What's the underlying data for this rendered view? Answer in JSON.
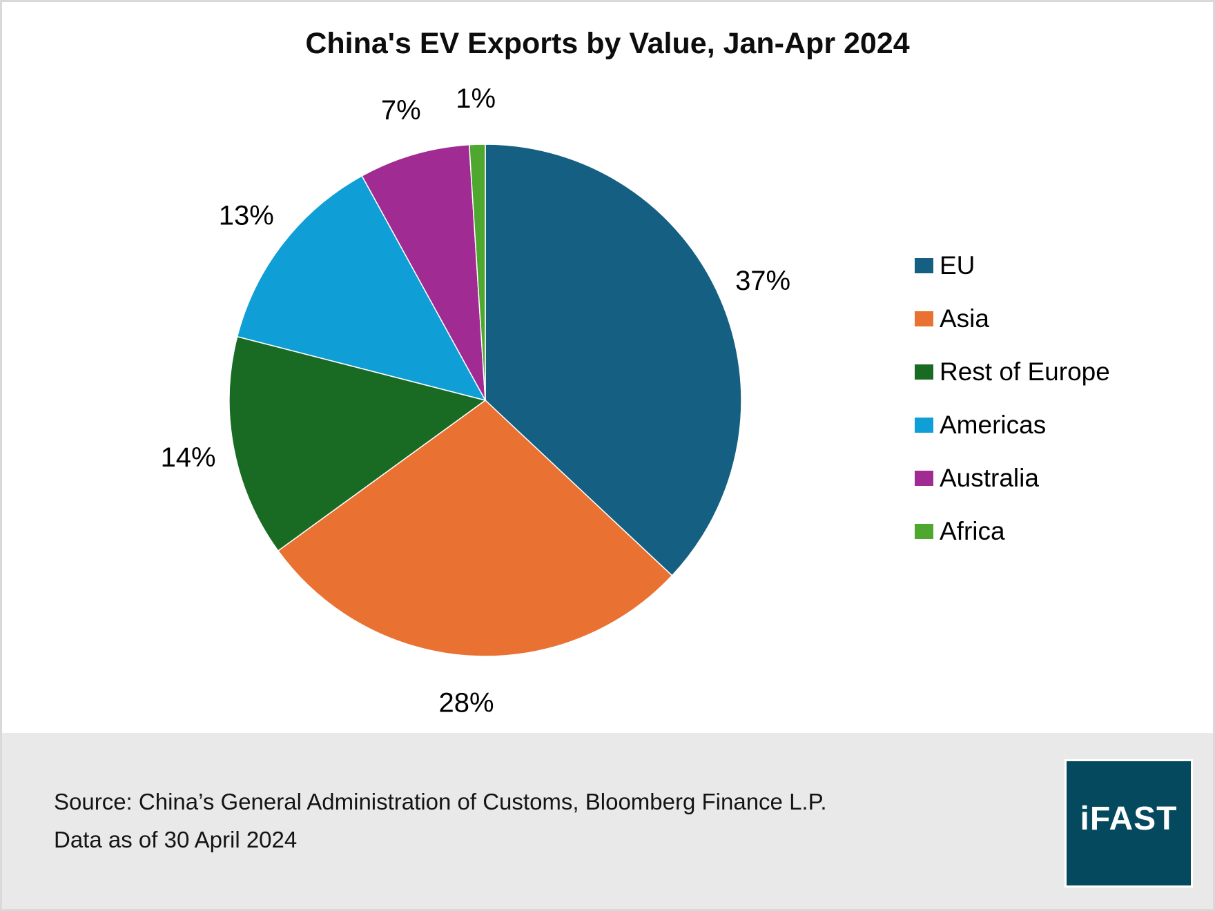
{
  "title": "China's EV Exports by Value, Jan-Apr 2024",
  "chart_data": {
    "type": "pie",
    "title": "China's EV Exports by Value, Jan-Apr 2024",
    "categories": [
      "EU",
      "Asia",
      "Rest of Europe",
      "Americas",
      "Australia",
      "Africa"
    ],
    "values": [
      37,
      28,
      14,
      13,
      7,
      1
    ],
    "unit": "%",
    "data_labels": [
      "37%",
      "28%",
      "14%",
      "13%",
      "7%",
      "1%"
    ],
    "colors": [
      "#156082",
      "#E97132",
      "#196B24",
      "#0F9ED5",
      "#A02B93",
      "#4EA72E"
    ],
    "start_angle_deg": 0,
    "direction": "clockwise",
    "legend_position": "right",
    "slice_border_color": "#FFFFFF"
  },
  "footer": {
    "source_line1": "Source: China’s General Administration of Customs, Bloomberg Finance L.P.",
    "source_line2": "Data as of 30 April 2024",
    "logo_text": "iFAST",
    "logo_bg": "#05495F",
    "band_bg": "#E9E9E9"
  }
}
